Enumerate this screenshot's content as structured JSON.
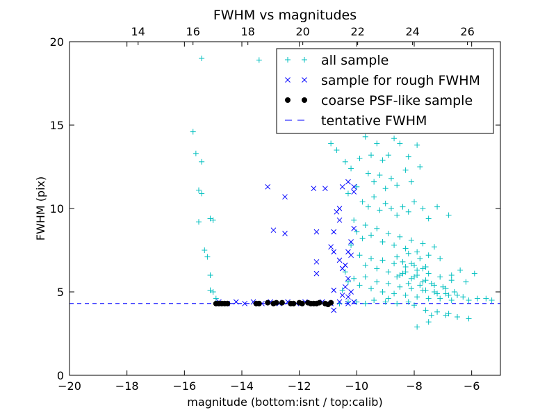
{
  "chart_data": {
    "type": "scatter",
    "title": "FWHM vs magnitudes",
    "xlabel": "magnitude (bottom:isnt / top:calib)",
    "ylabel": "FWHM (pix)",
    "xlim": [
      -20,
      -5
    ],
    "ylim": [
      0,
      20
    ],
    "top_xlim": [
      11.5,
      27.2
    ],
    "x_ticks": [
      "−20",
      "−18",
      "−16",
      "−14",
      "−12",
      "−10",
      "−8",
      "−6"
    ],
    "x_tick_values": [
      -20,
      -18,
      -16,
      -14,
      -12,
      -10,
      -8,
      -6
    ],
    "y_ticks": [
      "0",
      "5",
      "10",
      "15",
      "20"
    ],
    "y_tick_values": [
      0,
      5,
      10,
      15,
      20
    ],
    "top_ticks": [
      "14",
      "16",
      "18",
      "20",
      "22",
      "24",
      "26"
    ],
    "top_tick_values": [
      14,
      16,
      18,
      20,
      22,
      24,
      26
    ],
    "grid": false,
    "legend_position": "top-right",
    "hline": {
      "name": "tentative FWHM",
      "y": 4.3,
      "color": "#0000ff",
      "style": "dashed"
    },
    "series": [
      {
        "name": "all sample",
        "marker": "plus",
        "color": "#00bfbf",
        "points": [
          [
            -15.4,
            19.0
          ],
          [
            -13.4,
            18.9
          ],
          [
            -15.7,
            14.6
          ],
          [
            -15.6,
            13.3
          ],
          [
            -15.4,
            12.8
          ],
          [
            -15.5,
            11.1
          ],
          [
            -15.4,
            10.9
          ],
          [
            -15.5,
            9.2
          ],
          [
            -15.1,
            9.4
          ],
          [
            -15.0,
            9.3
          ],
          [
            -15.3,
            7.5
          ],
          [
            -15.2,
            7.1
          ],
          [
            -15.1,
            6.0
          ],
          [
            -15.1,
            5.1
          ],
          [
            -15.0,
            5.0
          ],
          [
            -14.9,
            4.6
          ],
          [
            -10.9,
            13.9
          ],
          [
            -10.7,
            13.5
          ],
          [
            -10.4,
            12.8
          ],
          [
            -10.2,
            12.4
          ],
          [
            -9.9,
            13.0
          ],
          [
            -9.7,
            14.3
          ],
          [
            -9.5,
            13.2
          ],
          [
            -9.3,
            13.9
          ],
          [
            -9.1,
            12.9
          ],
          [
            -8.9,
            13.2
          ],
          [
            -8.7,
            14.2
          ],
          [
            -8.5,
            13.9
          ],
          [
            -8.2,
            13.1
          ],
          [
            -7.9,
            13.8
          ],
          [
            -9.6,
            12.1
          ],
          [
            -9.4,
            11.6
          ],
          [
            -9.2,
            12.0
          ],
          [
            -9.0,
            11.2
          ],
          [
            -8.8,
            11.8
          ],
          [
            -8.6,
            11.4
          ],
          [
            -8.3,
            12.3
          ],
          [
            -8.1,
            11.6
          ],
          [
            -7.8,
            12.5
          ],
          [
            -10.0,
            11.3
          ],
          [
            -10.3,
            10.9
          ],
          [
            -9.8,
            10.4
          ],
          [
            -9.6,
            10.1
          ],
          [
            -9.4,
            10.7
          ],
          [
            -9.2,
            9.9
          ],
          [
            -9.0,
            10.3
          ],
          [
            -8.8,
            10.0
          ],
          [
            -8.6,
            9.6
          ],
          [
            -8.4,
            10.1
          ],
          [
            -8.2,
            9.8
          ],
          [
            -8.0,
            10.4
          ],
          [
            -7.7,
            10.0
          ],
          [
            -7.5,
            9.4
          ],
          [
            -7.2,
            10.1
          ],
          [
            -6.8,
            9.6
          ],
          [
            -10.1,
            9.3
          ],
          [
            -10.0,
            8.6
          ],
          [
            -9.8,
            8.2
          ],
          [
            -9.7,
            9.0
          ],
          [
            -9.5,
            8.4
          ],
          [
            -9.3,
            8.8
          ],
          [
            -9.1,
            8.0
          ],
          [
            -8.9,
            8.5
          ],
          [
            -8.7,
            7.8
          ],
          [
            -8.5,
            8.3
          ],
          [
            -8.3,
            7.6
          ],
          [
            -8.1,
            8.1
          ],
          [
            -7.9,
            7.4
          ],
          [
            -7.7,
            7.9
          ],
          [
            -7.5,
            7.2
          ],
          [
            -7.3,
            7.7
          ],
          [
            -7.1,
            7.0
          ],
          [
            -10.2,
            7.8
          ],
          [
            -9.9,
            7.2
          ],
          [
            -9.7,
            6.6
          ],
          [
            -9.5,
            7.0
          ],
          [
            -9.3,
            6.4
          ],
          [
            -9.1,
            6.9
          ],
          [
            -8.9,
            6.2
          ],
          [
            -8.7,
            6.7
          ],
          [
            -8.5,
            6.0
          ],
          [
            -8.3,
            6.5
          ],
          [
            -8.1,
            5.8
          ],
          [
            -7.9,
            6.3
          ],
          [
            -7.7,
            5.6
          ],
          [
            -7.5,
            6.1
          ],
          [
            -7.3,
            5.4
          ],
          [
            -7.1,
            5.9
          ],
          [
            -6.9,
            5.2
          ],
          [
            -6.7,
            5.7
          ],
          [
            -10.4,
            6.2
          ],
          [
            -10.1,
            5.8
          ],
          [
            -9.9,
            5.4
          ],
          [
            -9.7,
            5.9
          ],
          [
            -9.5,
            5.2
          ],
          [
            -9.3,
            5.6
          ],
          [
            -9.1,
            5.0
          ],
          [
            -8.9,
            5.5
          ],
          [
            -8.7,
            4.9
          ],
          [
            -8.5,
            5.3
          ],
          [
            -8.3,
            4.8
          ],
          [
            -8.1,
            5.2
          ],
          [
            -7.9,
            4.7
          ],
          [
            -7.7,
            5.1
          ],
          [
            -7.5,
            4.6
          ],
          [
            -7.3,
            5.0
          ],
          [
            -7.1,
            4.6
          ],
          [
            -6.9,
            4.9
          ],
          [
            -6.7,
            4.5
          ],
          [
            -6.5,
            4.8
          ],
          [
            -6.3,
            4.7
          ],
          [
            -6.1,
            4.5
          ],
          [
            -5.8,
            4.6
          ],
          [
            -5.5,
            4.6
          ],
          [
            -5.3,
            4.5
          ],
          [
            -8.6,
            7.1
          ],
          [
            -8.4,
            6.8
          ],
          [
            -8.2,
            7.3
          ],
          [
            -8.0,
            6.6
          ],
          [
            -7.8,
            7.0
          ],
          [
            -7.6,
            6.5
          ],
          [
            -8.6,
            5.9
          ],
          [
            -8.4,
            6.1
          ],
          [
            -8.2,
            5.5
          ],
          [
            -8.0,
            5.9
          ],
          [
            -7.8,
            5.4
          ],
          [
            -7.6,
            5.7
          ],
          [
            -8.3,
            6.2
          ],
          [
            -8.1,
            6.7
          ],
          [
            -7.9,
            6.0
          ],
          [
            -7.7,
            6.4
          ],
          [
            -7.6,
            5.1
          ],
          [
            -7.4,
            5.5
          ],
          [
            -7.2,
            4.9
          ],
          [
            -7.0,
            5.3
          ],
          [
            -6.8,
            4.8
          ],
          [
            -6.6,
            5.0
          ],
          [
            -8.0,
            4.2
          ],
          [
            -7.6,
            3.9
          ],
          [
            -7.2,
            3.8
          ],
          [
            -6.9,
            3.6
          ],
          [
            -6.5,
            3.5
          ],
          [
            -6.1,
            3.4
          ],
          [
            -7.9,
            2.9
          ],
          [
            -7.5,
            3.2
          ],
          [
            -6.8,
            3.7
          ],
          [
            -7.4,
            3.6
          ],
          [
            -5.9,
            6.1
          ],
          [
            -6.2,
            5.6
          ],
          [
            -6.4,
            6.3
          ],
          [
            -6.7,
            6.0
          ],
          [
            -9.7,
            4.3
          ],
          [
            -10.0,
            4.4
          ],
          [
            -10.3,
            4.4
          ],
          [
            -10.6,
            4.3
          ],
          [
            -9.0,
            4.4
          ],
          [
            -8.6,
            4.3
          ],
          [
            -8.2,
            4.4
          ],
          [
            -8.9,
            4.6
          ],
          [
            -9.4,
            4.5
          ],
          [
            -10.5,
            5.1
          ],
          [
            -10.3,
            5.6
          ]
        ]
      },
      {
        "name": "sample for rough FWHM",
        "marker": "x",
        "color": "#0000ff",
        "points": [
          [
            -14.8,
            4.4
          ],
          [
            -14.5,
            4.3
          ],
          [
            -14.2,
            4.4
          ],
          [
            -13.9,
            4.3
          ],
          [
            -13.6,
            4.4
          ],
          [
            -13.3,
            4.3
          ],
          [
            -13.0,
            4.4
          ],
          [
            -12.7,
            4.3
          ],
          [
            -12.4,
            4.4
          ],
          [
            -12.1,
            4.3
          ],
          [
            -11.8,
            4.4
          ],
          [
            -11.5,
            4.3
          ],
          [
            -11.2,
            4.4
          ],
          [
            -10.9,
            4.3
          ],
          [
            -10.6,
            4.4
          ],
          [
            -10.3,
            4.3
          ],
          [
            -10.1,
            4.4
          ],
          [
            -13.1,
            11.3
          ],
          [
            -12.5,
            10.7
          ],
          [
            -12.9,
            8.7
          ],
          [
            -12.5,
            8.5
          ],
          [
            -11.5,
            11.2
          ],
          [
            -11.1,
            11.2
          ],
          [
            -10.5,
            11.3
          ],
          [
            -10.1,
            11.3
          ],
          [
            -10.1,
            11.0
          ],
          [
            -10.3,
            11.6
          ],
          [
            -10.6,
            10.0
          ],
          [
            -10.7,
            9.8
          ],
          [
            -10.6,
            9.3
          ],
          [
            -11.4,
            8.6
          ],
          [
            -10.8,
            8.6
          ],
          [
            -10.1,
            8.8
          ],
          [
            -10.2,
            8.0
          ],
          [
            -10.3,
            7.4
          ],
          [
            -10.9,
            7.7
          ],
          [
            -10.8,
            7.4
          ],
          [
            -10.2,
            7.2
          ],
          [
            -11.4,
            6.8
          ],
          [
            -11.4,
            6.1
          ],
          [
            -10.6,
            6.9
          ],
          [
            -10.5,
            6.4
          ],
          [
            -10.4,
            6.6
          ],
          [
            -10.3,
            5.8
          ],
          [
            -10.4,
            5.3
          ],
          [
            -10.2,
            5.0
          ],
          [
            -10.8,
            5.1
          ],
          [
            -10.5,
            4.8
          ],
          [
            -10.3,
            4.7
          ],
          [
            -10.8,
            3.9
          ]
        ]
      },
      {
        "name": "coarse PSF-like sample",
        "marker": "dot",
        "color": "#000000",
        "points": [
          [
            -14.8,
            4.3
          ],
          [
            -14.7,
            4.3
          ],
          [
            -14.6,
            4.3
          ],
          [
            -14.5,
            4.3
          ],
          [
            -13.4,
            4.3
          ],
          [
            -13.1,
            4.35
          ],
          [
            -12.9,
            4.3
          ],
          [
            -12.6,
            4.35
          ],
          [
            -12.3,
            4.3
          ],
          [
            -12.0,
            4.35
          ],
          [
            -11.9,
            4.3
          ],
          [
            -11.7,
            4.35
          ],
          [
            -11.5,
            4.3
          ],
          [
            -11.3,
            4.35
          ],
          [
            -11.1,
            4.3
          ],
          [
            -10.9,
            4.35
          ],
          [
            -12.2,
            4.3
          ],
          [
            -11.6,
            4.3
          ],
          [
            -14.9,
            4.3
          ],
          [
            -13.5,
            4.3
          ],
          [
            -12.8,
            4.35
          ],
          [
            -11.4,
            4.3
          ],
          [
            -11.0,
            4.25
          ]
        ]
      }
    ]
  }
}
